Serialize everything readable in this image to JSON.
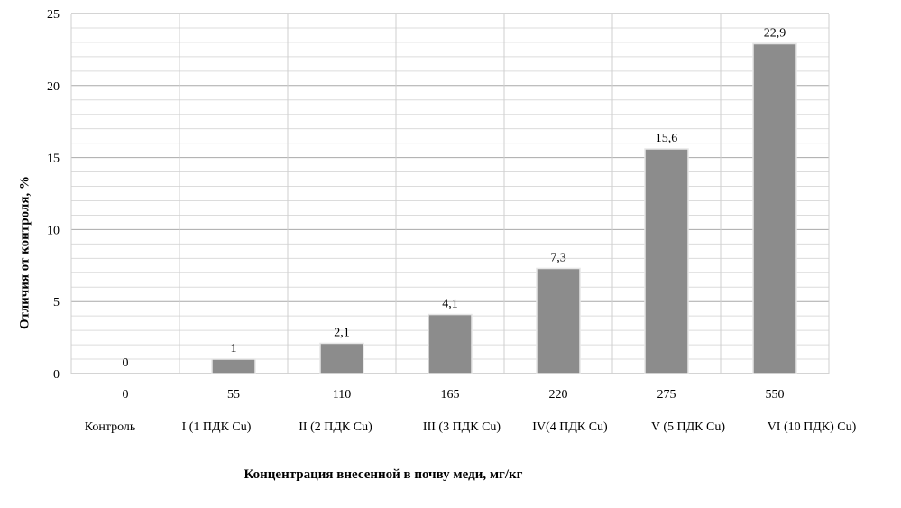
{
  "chart_data": {
    "type": "bar",
    "categories": [
      "0",
      "55",
      "110",
      "165",
      "220",
      "275",
      "550"
    ],
    "group_labels": [
      "Контроль",
      "I (1  ПДК Cu)",
      "II (2 ПДК Cu)",
      "III (3 ПДК Cu)",
      "IV(4 ПДК Cu)",
      "V (5 ПДК Cu)",
      "VI (10 ПДК) Cu)"
    ],
    "values": [
      0,
      1,
      2.1,
      4.1,
      7.3,
      15.6,
      22.9
    ],
    "data_labels": [
      "0",
      "1",
      "2,1",
      "4,1",
      "7,3",
      "15,6",
      "22,9"
    ],
    "yticks": [
      "0",
      "5",
      "10",
      "15",
      "20",
      "25"
    ],
    "ylim": [
      0,
      25
    ],
    "xlabel": "Концентрация внесенной в почву меди, мг/кг",
    "ylabel": "Отличия от контроля, %",
    "grid": true,
    "bar_color": "#8c8c8c"
  }
}
